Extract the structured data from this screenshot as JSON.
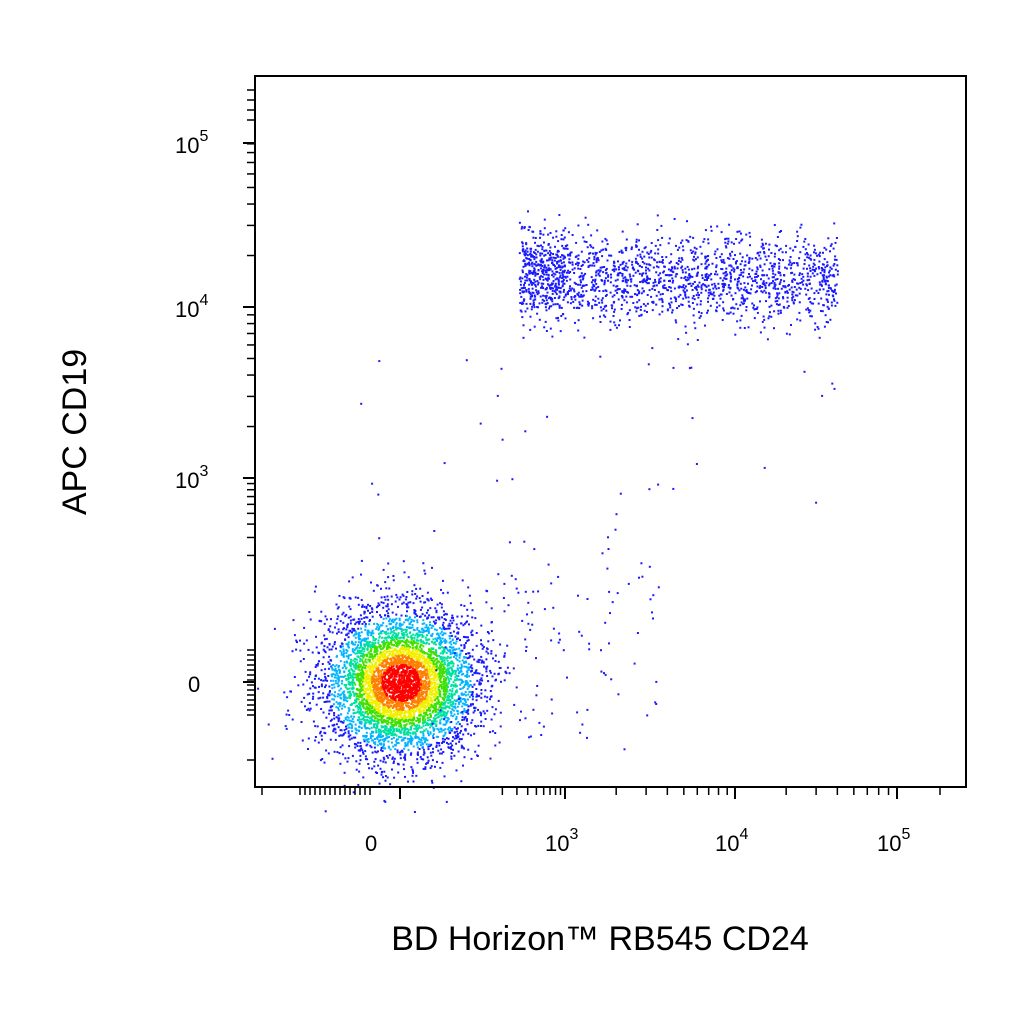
{
  "chart_data": {
    "type": "scatter",
    "style": "flow-cytometry density dot plot (pseudocolor)",
    "xlabel": "BD Horizon™ RB545 CD24",
    "ylabel": "APC CD19",
    "x_scale": "biexponential (logicle)",
    "y_scale": "biexponential (logicle)",
    "x_ticks": [
      {
        "label": "0",
        "value": 0
      },
      {
        "label": "10",
        "sup": "3",
        "value": 1000
      },
      {
        "label": "10",
        "sup": "4",
        "value": 10000
      },
      {
        "label": "10",
        "sup": "5",
        "value": 100000
      }
    ],
    "y_ticks": [
      {
        "label": "0",
        "value": 0
      },
      {
        "label": "10",
        "sup": "3",
        "value": 1000
      },
      {
        "label": "10",
        "sup": "4",
        "value": 10000
      },
      {
        "label": "10",
        "sup": "5",
        "value": 100000
      }
    ],
    "colors": {
      "sparse": "#1a1aff",
      "density_scale": [
        "#1a1aff",
        "#00b4ff",
        "#00e0a0",
        "#40e000",
        "#f0f000",
        "#ff8000",
        "#ff0000"
      ]
    },
    "populations": [
      {
        "description_visible": false,
        "center": {
          "x": 0,
          "y": 0
        },
        "spread_decades": {
          "x": 0.35,
          "y": 0.35
        },
        "relative_count": 0.72,
        "peak_density_color": "#ff0000"
      },
      {
        "description_visible": false,
        "x_range": [
          300,
          30000
        ],
        "y_center": 15000,
        "relative_count": 0.26,
        "peak_density_color": "#1a1aff"
      }
    ],
    "grid": false,
    "legend": "none"
  }
}
